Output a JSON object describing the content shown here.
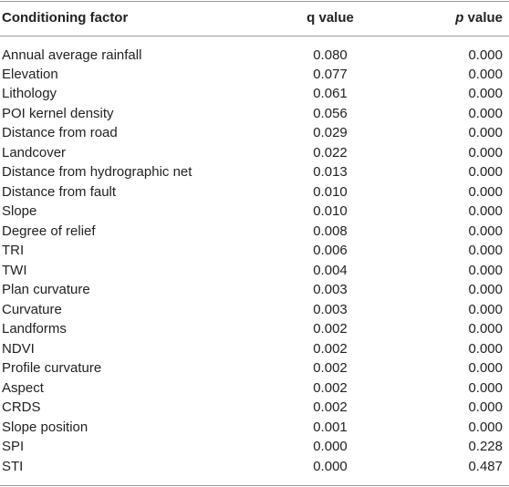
{
  "table": {
    "header": [
      "Conditioning factor",
      "q value",
      "p value"
    ],
    "rows": [
      [
        "Annual average rainfall",
        "0.080",
        "0.000"
      ],
      [
        "Elevation",
        "0.077",
        "0.000"
      ],
      [
        "Lithology",
        "0.061",
        "0.000"
      ],
      [
        "POI kernel density",
        "0.056",
        "0.000"
      ],
      [
        "Distance from road",
        "0.029",
        "0.000"
      ],
      [
        "Landcover",
        "0.022",
        "0.000"
      ],
      [
        "Distance from hydrographic net",
        "0.013",
        "0.000"
      ],
      [
        "Distance from fault",
        "0.010",
        "0.000"
      ],
      [
        "Slope",
        "0.010",
        "0.000"
      ],
      [
        "Degree of relief",
        "0.008",
        "0.000"
      ],
      [
        "TRI",
        "0.006",
        "0.000"
      ],
      [
        "TWI",
        "0.004",
        "0.000"
      ],
      [
        "Plan curvature",
        "0.003",
        "0.000"
      ],
      [
        "Curvature",
        "0.003",
        "0.000"
      ],
      [
        "Landforms",
        "0.002",
        "0.000"
      ],
      [
        "NDVI",
        "0.002",
        "0.000"
      ],
      [
        "Profile curvature",
        "0.002",
        "0.000"
      ],
      [
        "Aspect",
        "0.002",
        "0.000"
      ],
      [
        "CRDS",
        "0.002",
        "0.000"
      ],
      [
        "Slope position",
        "0.001",
        "0.000"
      ],
      [
        "SPI",
        "0.000",
        "0.228"
      ],
      [
        "STI",
        "0.000",
        "0.487"
      ]
    ]
  }
}
